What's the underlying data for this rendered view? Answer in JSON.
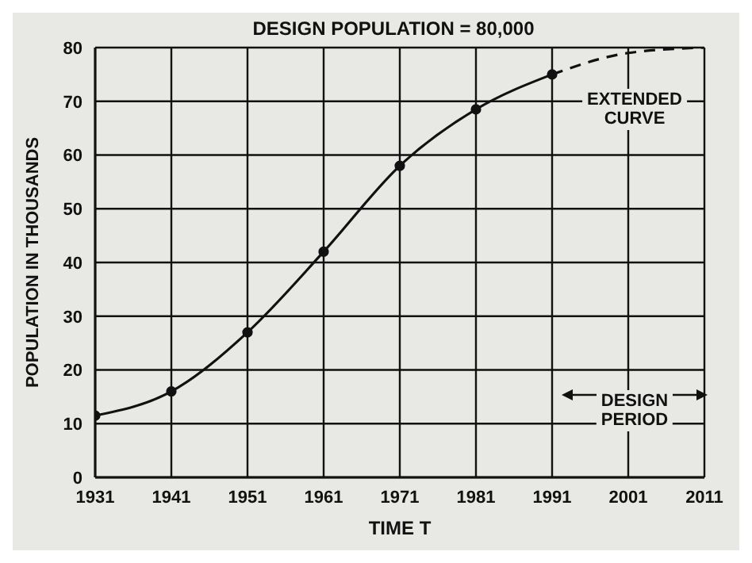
{
  "chart_data": {
    "type": "line",
    "title": "DESIGN POPULATION = 80,000",
    "xlabel": "TIME  T",
    "ylabel": "POPULATION IN THOUSANDS",
    "series": [
      {
        "type": "line",
        "x": [
          1931,
          1941,
          1951,
          1961,
          1971,
          1981,
          1991
        ],
        "values": [
          11.5,
          16,
          27,
          42,
          58,
          68.5,
          75
        ],
        "color": "#111111",
        "marker": "circle",
        "line_style": "solid"
      },
      {
        "type": "line",
        "x": [
          1991,
          2001,
          2011
        ],
        "values": [
          75,
          79,
          80
        ],
        "color": "#111111",
        "marker": "none",
        "line_style": "dashed"
      }
    ],
    "annotations": [
      "EXTENDED CURVE",
      "DESIGN PERIOD"
    ],
    "xlim": [
      1931,
      2011
    ],
    "xticks": [
      1931,
      1941,
      1951,
      1961,
      1971,
      1981,
      1991,
      2001,
      2011
    ],
    "ylim": [
      0,
      80
    ],
    "yticks": [
      0,
      10,
      20,
      30,
      40,
      50,
      60,
      70,
      80
    ],
    "grid": true
  }
}
